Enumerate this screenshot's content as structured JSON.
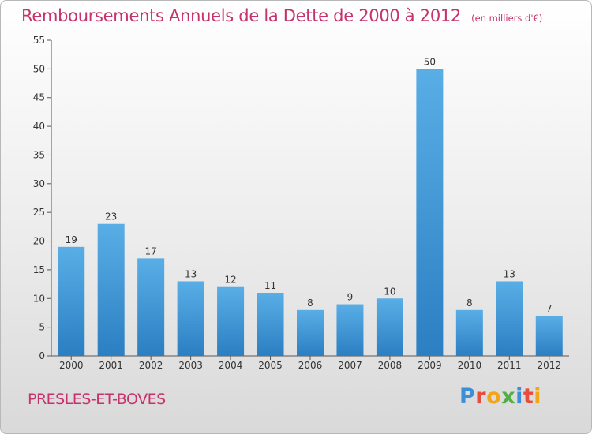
{
  "chart_data": {
    "type": "bar",
    "title": "Remboursements Annuels de la Dette de 2000 à 2012",
    "subtitle": "(en milliers d'€)",
    "categories": [
      "2000",
      "2001",
      "2002",
      "2003",
      "2004",
      "2005",
      "2006",
      "2007",
      "2008",
      "2009",
      "2010",
      "2011",
      "2012"
    ],
    "values": [
      19,
      23,
      17,
      13,
      12,
      11,
      8,
      9,
      10,
      50,
      8,
      13,
      7
    ],
    "xlabel": "",
    "ylabel": "",
    "ylim": [
      0,
      55
    ],
    "yticks": [
      0,
      5,
      10,
      15,
      20,
      25,
      30,
      35,
      40,
      45,
      50,
      55
    ],
    "grid": false,
    "legend": "none",
    "colors": {
      "bar_light": "#5aaee6",
      "bar_dark": "#2b7fc2",
      "title": "#c6326b",
      "axis": "#555555"
    }
  },
  "footer": {
    "place": "PRESLES-ET-BOVES"
  },
  "brand": {
    "name": "Proxiti",
    "letters": [
      {
        "char": "P",
        "color": "#3a8fd8"
      },
      {
        "char": "r",
        "color": "#e74c3c"
      },
      {
        "char": "o",
        "color": "#f2a516"
      },
      {
        "char": "x",
        "color": "#52b043"
      },
      {
        "char": "i",
        "color": "#3a8fd8"
      },
      {
        "char": "t",
        "color": "#e74c3c"
      },
      {
        "char": "i",
        "color": "#f2a516"
      }
    ]
  }
}
